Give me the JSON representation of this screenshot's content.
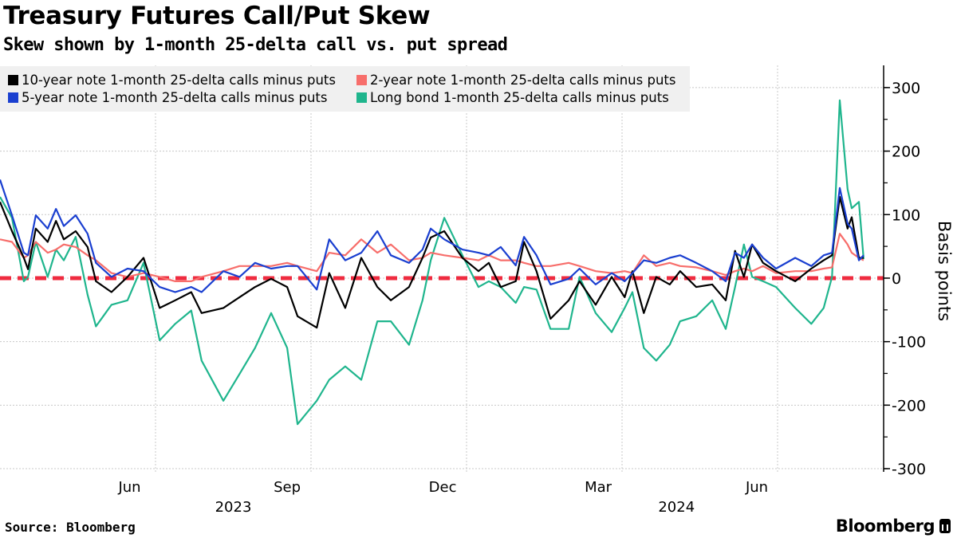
{
  "chart_data": {
    "type": "line",
    "title": "Treasury Futures Call/Put Skew",
    "subtitle": "Skew shown by 1-month 25-delta call vs. put spread",
    "ylabel": "Basis points",
    "xlabel": "",
    "x_unit": "months since Apr 1 2023",
    "xlim": [
      0,
      17
    ],
    "ylim": [
      -305,
      335
    ],
    "y_ticks": [
      -300,
      -200,
      -100,
      0,
      100,
      200,
      300
    ],
    "y_tick_labels": [
      "-300",
      "-200",
      "-100",
      "0",
      "100",
      "200",
      "300"
    ],
    "x_tick_labels": [
      {
        "label": "Jun",
        "x": 2.5
      },
      {
        "label": "Sep",
        "x": 5.54
      },
      {
        "label": "Dec",
        "x": 8.54
      },
      {
        "label": "Mar",
        "x": 11.54
      },
      {
        "label": "Jun",
        "x": 14.6
      }
    ],
    "x_year_labels": [
      {
        "label": "2023",
        "x": 4.5
      },
      {
        "label": "2024",
        "x": 13.05
      }
    ],
    "x_gridlines": [
      3,
      6,
      9,
      12,
      15
    ],
    "grid": true,
    "reference_line": {
      "value": 0,
      "color": "#ef2b3f",
      "style": "dashed"
    },
    "legend_position": "top-left",
    "x": [
      0,
      0.23,
      0.46,
      0.54,
      0.69,
      0.92,
      1.08,
      1.23,
      1.46,
      1.69,
      1.85,
      2.15,
      2.46,
      2.77,
      3.08,
      3.38,
      3.69,
      3.89,
      4.31,
      4.62,
      4.92,
      5.23,
      5.54,
      5.74,
      6.11,
      6.35,
      6.66,
      6.97,
      7.28,
      7.54,
      7.89,
      8.15,
      8.31,
      8.57,
      8.92,
      9.23,
      9.43,
      9.66,
      9.95,
      10.11,
      10.35,
      10.62,
      10.97,
      11.18,
      11.49,
      11.8,
      12.05,
      12.2,
      12.42,
      12.66,
      12.92,
      13.12,
      13.43,
      13.74,
      14.0,
      14.18,
      14.35,
      14.51,
      14.72,
      14.97,
      15.34,
      15.65,
      15.89,
      16.05,
      16.2,
      16.35,
      16.43,
      16.57,
      16.66
    ],
    "series": [
      {
        "name": "10-year note 1-month 25-delta calls minus puts",
        "color": "#000000",
        "values": [
          120,
          74,
          32,
          14,
          78,
          57,
          90,
          61,
          74,
          49,
          -5,
          -22,
          2,
          32,
          -47,
          -35,
          -22,
          -55,
          -47,
          -30,
          -14,
          -1,
          -14,
          -60,
          -78,
          8,
          -47,
          32,
          -14,
          -35,
          -14,
          32,
          64,
          74,
          32,
          11,
          24,
          -14,
          -5,
          57,
          11,
          -64,
          -35,
          -5,
          -42,
          2,
          -30,
          11,
          -55,
          2,
          -10,
          11,
          -14,
          -10,
          -35,
          43,
          2,
          53,
          24,
          11,
          -5,
          15,
          28,
          36,
          128,
          78,
          96,
          32,
          32
        ]
      },
      {
        "name": "2-year note 1-month 25-delta calls minus puts",
        "color": "#f76e6b",
        "values": [
          61,
          57,
          32,
          36,
          57,
          40,
          45,
          53,
          49,
          36,
          28,
          8,
          2,
          8,
          2,
          -5,
          -5,
          2,
          11,
          19,
          19,
          19,
          24,
          19,
          11,
          40,
          36,
          61,
          40,
          53,
          28,
          32,
          40,
          36,
          32,
          28,
          36,
          28,
          28,
          24,
          19,
          19,
          24,
          19,
          11,
          8,
          11,
          8,
          36,
          19,
          24,
          19,
          17,
          11,
          5,
          11,
          15,
          11,
          19,
          8,
          11,
          11,
          15,
          17,
          70,
          53,
          40,
          32,
          28
        ]
      },
      {
        "name": "5-year note 1-month 25-delta calls minus puts",
        "color": "#1a3fd0",
        "values": [
          155,
          99,
          40,
          36,
          99,
          78,
          109,
          82,
          99,
          70,
          24,
          2,
          15,
          11,
          -14,
          -22,
          -14,
          -22,
          11,
          2,
          24,
          15,
          19,
          19,
          -18,
          61,
          28,
          40,
          74,
          36,
          24,
          45,
          78,
          61,
          45,
          40,
          36,
          49,
          20,
          65,
          36,
          -10,
          -1,
          15,
          -10,
          8,
          -5,
          8,
          28,
          24,
          32,
          36,
          24,
          11,
          -5,
          40,
          32,
          53,
          32,
          15,
          32,
          19,
          36,
          40,
          142,
          86,
          78,
          28,
          36
        ]
      },
      {
        "name": "Long bond 1-month 25-delta calls minus puts",
        "color": "#1fb58d",
        "values": [
          128,
          95,
          -5,
          2,
          57,
          2,
          45,
          28,
          65,
          -26,
          -76,
          -42,
          -35,
          24,
          -98,
          -72,
          -51,
          -130,
          -193,
          -151,
          -110,
          -55,
          -110,
          -230,
          -193,
          -160,
          -139,
          -160,
          -68,
          -68,
          -105,
          -35,
          28,
          95,
          36,
          -14,
          -5,
          -14,
          -39,
          -14,
          -18,
          -80,
          -80,
          2,
          -55,
          -85,
          -47,
          -22,
          -110,
          -130,
          -105,
          -68,
          -60,
          -35,
          -80,
          -14,
          53,
          2,
          -5,
          -14,
          -47,
          -72,
          -47,
          2,
          280,
          140,
          110,
          120,
          30
        ]
      }
    ]
  },
  "source": "Source: Bloomberg",
  "brand": "Bloomberg"
}
